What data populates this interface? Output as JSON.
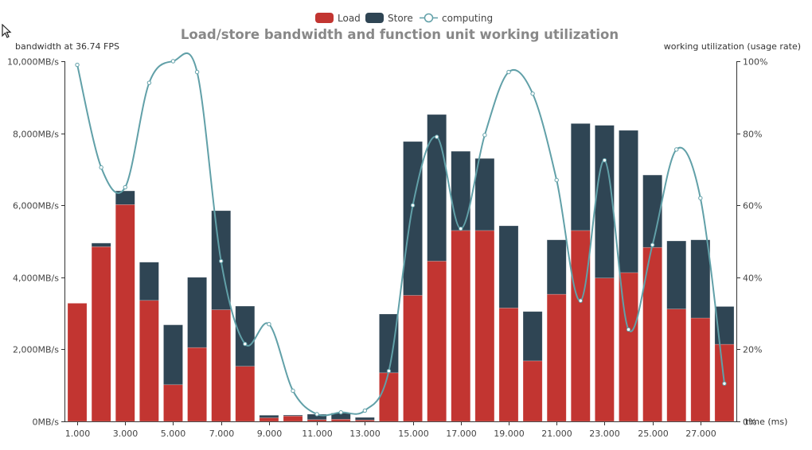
{
  "chart_data": {
    "type": "bar",
    "title": "Load/store bandwidth and function unit working utilization",
    "ylabel_left": "bandwidth at 36.74 FPS",
    "ylabel_right": "working utilization (usage rate)",
    "xlabel": "time (ms)",
    "x": [
      1,
      2,
      3,
      4,
      5,
      6,
      7,
      8,
      9,
      10,
      11,
      12,
      13,
      14,
      15,
      16,
      17,
      18,
      19,
      20,
      21,
      22,
      23,
      24,
      25,
      26,
      27,
      28
    ],
    "x_tick_labels": [
      "1.000",
      "3.000",
      "5.000",
      "7.000",
      "9.000",
      "11.000",
      "13.000",
      "15.000",
      "17.000",
      "19.000",
      "21.000",
      "23.000",
      "25.000",
      "27.000"
    ],
    "x_tick_values": [
      1,
      3,
      5,
      7,
      9,
      11,
      13,
      15,
      17,
      19,
      21,
      23,
      25,
      27
    ],
    "ylim_left": [
      0,
      10000
    ],
    "y_left_ticks": [
      0,
      2000,
      4000,
      6000,
      8000,
      10000
    ],
    "y_left_tick_labels": [
      "0MB/s",
      "2,000MB/s",
      "4,000MB/s",
      "6,000MB/s",
      "8,000MB/s",
      "10,000MB/s"
    ],
    "ylim_right": [
      0,
      100
    ],
    "y_right_ticks": [
      0,
      20,
      40,
      60,
      80,
      100
    ],
    "y_right_tick_labels": [
      "0%",
      "20%",
      "40%",
      "60%",
      "80%",
      "100%"
    ],
    "stacked": true,
    "grid": false,
    "legend_position": "top-center",
    "series": [
      {
        "name": "Load",
        "kind": "bar",
        "axis": "left",
        "color": "#c23531",
        "values": [
          3280,
          4850,
          6020,
          3360,
          1020,
          2050,
          3100,
          1530,
          100,
          150,
          50,
          60,
          40,
          1350,
          3500,
          4450,
          5300,
          5300,
          3150,
          1680,
          3530,
          5300,
          3980,
          4130,
          4830,
          3120,
          2870,
          2140
        ]
      },
      {
        "name": "Store",
        "kind": "bar",
        "axis": "left",
        "color": "#2f4554",
        "values": [
          0,
          100,
          380,
          1060,
          1660,
          1950,
          2750,
          1670,
          70,
          25,
          150,
          170,
          70,
          1630,
          4270,
          4070,
          2200,
          2000,
          2280,
          1370,
          1510,
          2970,
          4240,
          3950,
          2010,
          1890,
          2170,
          1050
        ]
      },
      {
        "name": "computing",
        "kind": "line",
        "smooth": true,
        "axis": "right",
        "color": "#61a0a8",
        "values": [
          99,
          70.5,
          65,
          94,
          100,
          97,
          44.5,
          21.5,
          27,
          8.5,
          2,
          2.5,
          3,
          14,
          60,
          79,
          53.5,
          79.5,
          97,
          91,
          67,
          33.5,
          72.5,
          25.5,
          49,
          75.5,
          62,
          10.5
        ]
      }
    ]
  }
}
